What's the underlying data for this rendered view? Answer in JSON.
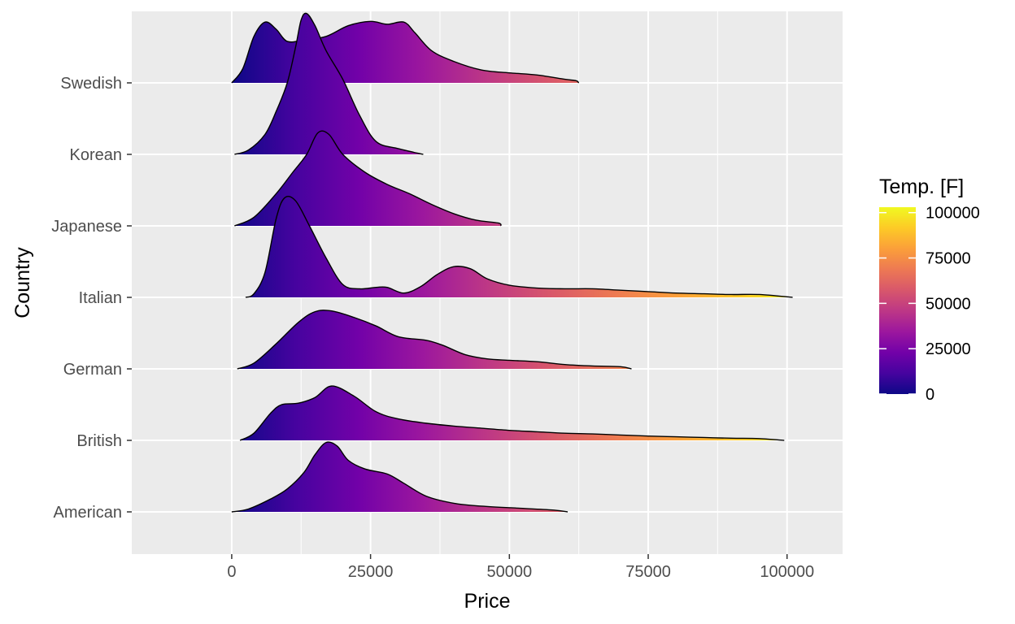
{
  "chart_data": {
    "type": "ridgeline",
    "xlabel": "Price",
    "ylabel": "Country",
    "xlim": [
      -18000,
      110000
    ],
    "x_ticks": [
      0,
      25000,
      50000,
      75000,
      100000
    ],
    "x_tick_labels": [
      "0",
      "25000",
      "50000",
      "75000",
      "100000"
    ],
    "grid": true,
    "panel_background": "#ebebeb",
    "fill_gradient": "plasma (by price)",
    "categories": [
      "American",
      "British",
      "German",
      "Italian",
      "Japanese",
      "Korean",
      "Swedish"
    ],
    "series": [
      {
        "name": "American",
        "points": [
          [
            0,
            0
          ],
          [
            3000,
            0.04
          ],
          [
            7000,
            0.18
          ],
          [
            10000,
            0.32
          ],
          [
            13000,
            0.55
          ],
          [
            15000,
            0.8
          ],
          [
            17000,
            0.97
          ],
          [
            19000,
            0.92
          ],
          [
            21000,
            0.72
          ],
          [
            24000,
            0.6
          ],
          [
            28000,
            0.53
          ],
          [
            31000,
            0.4
          ],
          [
            35000,
            0.22
          ],
          [
            40000,
            0.12
          ],
          [
            45000,
            0.08
          ],
          [
            52000,
            0.05
          ],
          [
            58000,
            0.025
          ],
          [
            60500,
            0
          ]
        ]
      },
      {
        "name": "British",
        "points": [
          [
            1500,
            0
          ],
          [
            4000,
            0.1
          ],
          [
            7000,
            0.38
          ],
          [
            9000,
            0.5
          ],
          [
            12000,
            0.52
          ],
          [
            15000,
            0.6
          ],
          [
            18000,
            0.76
          ],
          [
            22000,
            0.62
          ],
          [
            26000,
            0.4
          ],
          [
            30000,
            0.3
          ],
          [
            35000,
            0.24
          ],
          [
            40000,
            0.2
          ],
          [
            45000,
            0.17
          ],
          [
            50000,
            0.14
          ],
          [
            55000,
            0.12
          ],
          [
            60000,
            0.1
          ],
          [
            65000,
            0.09
          ],
          [
            70000,
            0.075
          ],
          [
            75000,
            0.06
          ],
          [
            80000,
            0.05
          ],
          [
            85000,
            0.04
          ],
          [
            90000,
            0.03
          ],
          [
            95000,
            0.025
          ],
          [
            99500,
            0
          ]
        ]
      },
      {
        "name": "German",
        "points": [
          [
            1000,
            0
          ],
          [
            4000,
            0.08
          ],
          [
            8000,
            0.35
          ],
          [
            12000,
            0.65
          ],
          [
            15000,
            0.8
          ],
          [
            18000,
            0.81
          ],
          [
            22000,
            0.72
          ],
          [
            26000,
            0.6
          ],
          [
            30000,
            0.45
          ],
          [
            35000,
            0.4
          ],
          [
            38000,
            0.33
          ],
          [
            42000,
            0.2
          ],
          [
            46000,
            0.14
          ],
          [
            50000,
            0.12
          ],
          [
            55000,
            0.1
          ],
          [
            60000,
            0.06
          ],
          [
            65000,
            0.04
          ],
          [
            70000,
            0.03
          ],
          [
            72000,
            0
          ]
        ]
      },
      {
        "name": "Italian",
        "points": [
          [
            2500,
            0
          ],
          [
            4000,
            0.05
          ],
          [
            6000,
            0.35
          ],
          [
            8000,
            1.1
          ],
          [
            9500,
            1.39
          ],
          [
            11500,
            1.35
          ],
          [
            14000,
            1.0
          ],
          [
            17000,
            0.55
          ],
          [
            20000,
            0.18
          ],
          [
            23000,
            0.12
          ],
          [
            26000,
            0.14
          ],
          [
            28000,
            0.14
          ],
          [
            31000,
            0.06
          ],
          [
            34000,
            0.15
          ],
          [
            37000,
            0.32
          ],
          [
            40000,
            0.43
          ],
          [
            43000,
            0.4
          ],
          [
            46000,
            0.26
          ],
          [
            50000,
            0.17
          ],
          [
            55000,
            0.13
          ],
          [
            60000,
            0.12
          ],
          [
            65000,
            0.12
          ],
          [
            70000,
            0.1
          ],
          [
            75000,
            0.08
          ],
          [
            80000,
            0.06
          ],
          [
            85000,
            0.05
          ],
          [
            90000,
            0.04
          ],
          [
            95000,
            0.04
          ],
          [
            101000,
            0
          ]
        ]
      },
      {
        "name": "Japanese",
        "points": [
          [
            500,
            0
          ],
          [
            4000,
            0.12
          ],
          [
            8000,
            0.45
          ],
          [
            11000,
            0.75
          ],
          [
            13500,
            1.0
          ],
          [
            15500,
            1.3
          ],
          [
            17500,
            1.28
          ],
          [
            20000,
            1.0
          ],
          [
            24000,
            0.75
          ],
          [
            28000,
            0.58
          ],
          [
            32000,
            0.45
          ],
          [
            36000,
            0.3
          ],
          [
            40000,
            0.17
          ],
          [
            44000,
            0.08
          ],
          [
            48000,
            0.04
          ],
          [
            48500,
            0
          ]
        ]
      },
      {
        "name": "Korean",
        "points": [
          [
            500,
            0
          ],
          [
            3000,
            0.06
          ],
          [
            6000,
            0.28
          ],
          [
            8000,
            0.6
          ],
          [
            10000,
            1.0
          ],
          [
            11500,
            1.5
          ],
          [
            12500,
            1.88
          ],
          [
            13500,
            1.97
          ],
          [
            15000,
            1.8
          ],
          [
            17000,
            1.45
          ],
          [
            20000,
            1.05
          ],
          [
            23000,
            0.55
          ],
          [
            26000,
            0.18
          ],
          [
            30000,
            0.08
          ],
          [
            34500,
            0
          ]
        ]
      },
      {
        "name": "Swedish",
        "points": [
          [
            0,
            0
          ],
          [
            2000,
            0.2
          ],
          [
            4000,
            0.65
          ],
          [
            6000,
            0.85
          ],
          [
            8000,
            0.75
          ],
          [
            10000,
            0.58
          ],
          [
            13000,
            0.6
          ],
          [
            17000,
            0.65
          ],
          [
            21000,
            0.8
          ],
          [
            25000,
            0.86
          ],
          [
            28000,
            0.82
          ],
          [
            31000,
            0.85
          ],
          [
            33000,
            0.7
          ],
          [
            36000,
            0.45
          ],
          [
            40000,
            0.3
          ],
          [
            45000,
            0.18
          ],
          [
            50000,
            0.14
          ],
          [
            55000,
            0.11
          ],
          [
            60000,
            0.05
          ],
          [
            62000,
            0.03
          ],
          [
            62500,
            0
          ]
        ]
      }
    ],
    "legend": {
      "title": "Temp. [F]",
      "position": "right",
      "ticks": [
        0,
        25000,
        50000,
        75000,
        100000
      ],
      "tick_labels": [
        "0",
        "25000",
        "50000",
        "75000",
        "100000"
      ],
      "range": [
        0,
        103000
      ]
    }
  }
}
